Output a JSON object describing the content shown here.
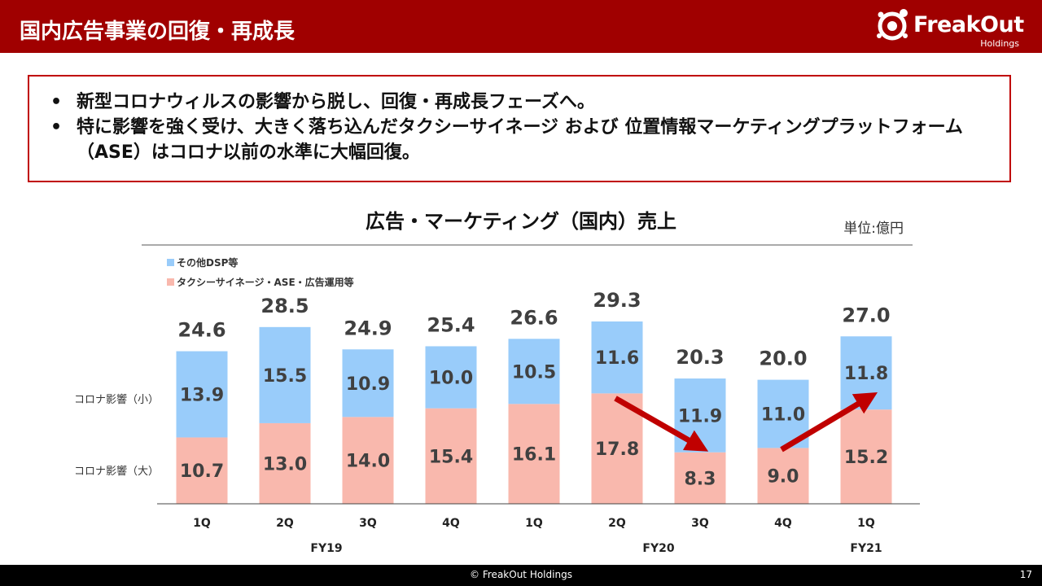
{
  "header": {
    "title": "国内広告事業の回復・再成長"
  },
  "logo": {
    "name": "FreakOut",
    "sub": "Holdings"
  },
  "callout": {
    "bullets": [
      "新型コロナウィルスの影響から脱し、回復・再成長フェーズへ。",
      "特に影響を強く受け、大きく落ち込んだタクシーサイネージ および 位置情報マーケティングプラットフォーム（ASE）はコロナ以前の水準に大幅回復。"
    ]
  },
  "chart_data": {
    "type": "bar",
    "stacked": true,
    "title": "広告・マーケティング（国内）売上",
    "unit": "単位:億円",
    "categories": [
      "1Q",
      "2Q",
      "3Q",
      "4Q",
      "1Q",
      "2Q",
      "3Q",
      "4Q",
      "1Q"
    ],
    "groups": [
      {
        "label": "FY19",
        "from": 0,
        "to": 3
      },
      {
        "label": "FY20",
        "from": 4,
        "to": 7
      },
      {
        "label": "FY21",
        "from": 8,
        "to": 8
      }
    ],
    "series": [
      {
        "name": "タクシーサイネージ・ASE・広告運用等",
        "color": "#f9b8ad",
        "values": [
          10.7,
          13.0,
          14.0,
          15.4,
          16.1,
          17.8,
          8.3,
          9.0,
          15.2
        ]
      },
      {
        "name": "その他DSP等",
        "color": "#99ccfa",
        "values": [
          13.9,
          15.5,
          10.9,
          10.0,
          10.5,
          11.6,
          11.9,
          11.0,
          11.8
        ]
      }
    ],
    "totals": [
      "24.6",
      "28.5",
      "24.9",
      "25.4",
      "26.6",
      "29.3",
      "20.3",
      "20.0",
      "27.0"
    ],
    "side_labels": {
      "top": "コロナ影響（小）",
      "bottom": "コロナ影響（大）"
    },
    "arrows": [
      {
        "from": 5,
        "to": 6,
        "direction": "down"
      },
      {
        "from": 7,
        "to": 8,
        "direction": "up"
      }
    ],
    "arrow_color": "#c00000",
    "legend_position": "top-left",
    "grid": false
  },
  "footer": {
    "copyright": "© FreakOut Holdings",
    "page": "17"
  }
}
